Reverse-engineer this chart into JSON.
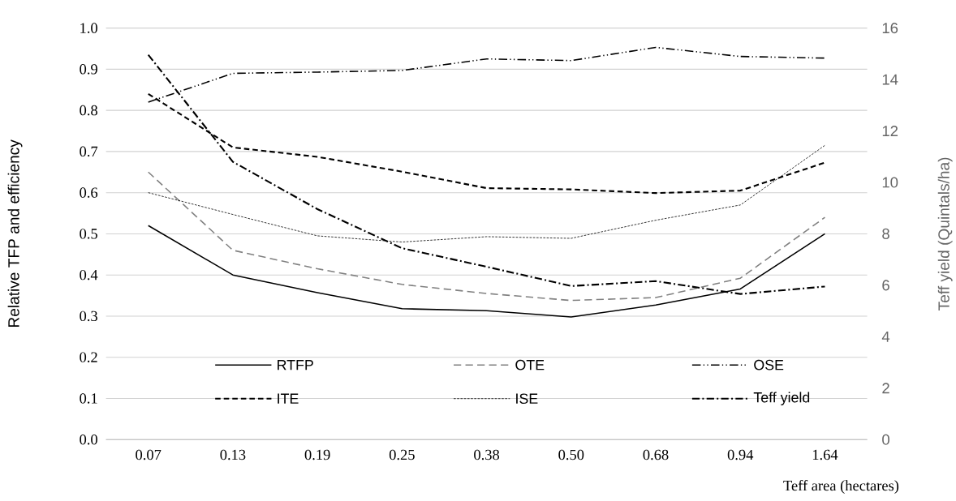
{
  "chart_data": {
    "type": "line",
    "xlabel": "Teff area (hectares)",
    "ylabel": "Relative TFP and efficiency",
    "y2label": "Teff yield (Quintals/ha)",
    "categories": [
      "0.07",
      "0.13",
      "0.19",
      "0.25",
      "0.38",
      "0.50",
      "0.68",
      "0.94",
      "1.64"
    ],
    "series": [
      {
        "name": "RTFP",
        "color": "#000000",
        "line_style": "solid",
        "values": [
          0.52,
          0.4,
          0.357,
          0.318,
          0.313,
          0.298,
          0.327,
          0.366,
          0.5
        ]
      },
      {
        "name": "OTE",
        "color": "#808080",
        "line_style": "long dashed",
        "values": [
          0.65,
          0.46,
          0.415,
          0.377,
          0.355,
          0.338,
          0.345,
          0.392,
          0.54
        ]
      },
      {
        "name": "OSE",
        "color": "#000000",
        "line_style": "dashdotdot",
        "values": [
          0.82,
          0.89,
          0.893,
          0.897,
          0.925,
          0.921,
          0.953,
          0.931,
          0.927
        ]
      },
      {
        "name": "ITE",
        "color": "#000000",
        "line_style": "dashed",
        "values": [
          0.84,
          0.71,
          0.687,
          0.651,
          0.611,
          0.608,
          0.599,
          0.605,
          0.673
        ]
      },
      {
        "name": "ISE",
        "color": "#000000",
        "line_style": "dotted",
        "values": [
          0.6,
          0.547,
          0.495,
          0.48,
          0.493,
          0.489,
          0.533,
          0.57,
          0.715
        ]
      },
      {
        "name": "Teff yield",
        "color": "#000000",
        "line_style": "dashdot",
        "axis": "y2",
        "values": [
          14.96,
          10.8,
          8.96,
          7.44,
          6.72,
          5.97,
          6.16,
          5.66,
          5.95
        ]
      }
    ],
    "ylim": [
      0,
      1.0
    ],
    "yticks": [
      {
        "value": 0,
        "label": "0.0"
      },
      0.1,
      0.2,
      0.3,
      0.4,
      0.5,
      0.6,
      0.7,
      0.8,
      0.9,
      {
        "value": 1.0,
        "label": "1.0"
      }
    ],
    "y2lim": [
      0,
      16
    ],
    "y2ticks": [
      0,
      2,
      4,
      6,
      8,
      10,
      12,
      14,
      16
    ],
    "grid": "y",
    "legend": "bottom",
    "marker": "none"
  }
}
